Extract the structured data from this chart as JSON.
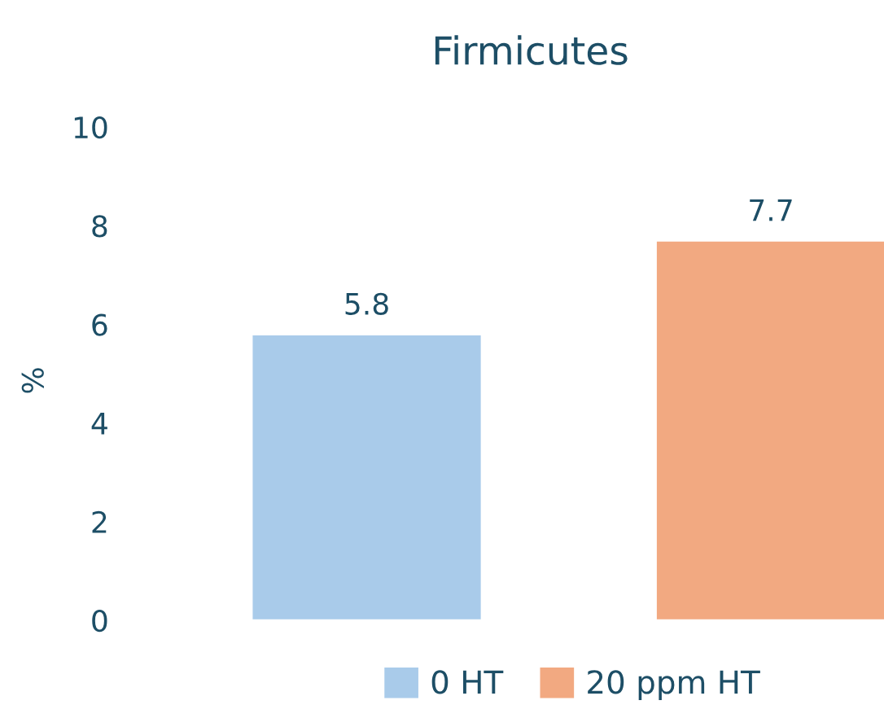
{
  "chart_data": {
    "type": "bar",
    "title": "Firmicutes",
    "ylabel": "%",
    "categories": [
      null
    ],
    "series": [
      {
        "name": "0 HT",
        "color": "#a9cbea",
        "values": [
          5.8
        ]
      },
      {
        "name": "20 ppm HT",
        "color": "#f2a981",
        "values": [
          7.7
        ]
      }
    ],
    "ylim": [
      0,
      10
    ],
    "yticks": [
      0,
      2,
      4,
      6,
      8,
      10
    ],
    "data_labels": true,
    "grid": false,
    "legend": "bottom"
  }
}
